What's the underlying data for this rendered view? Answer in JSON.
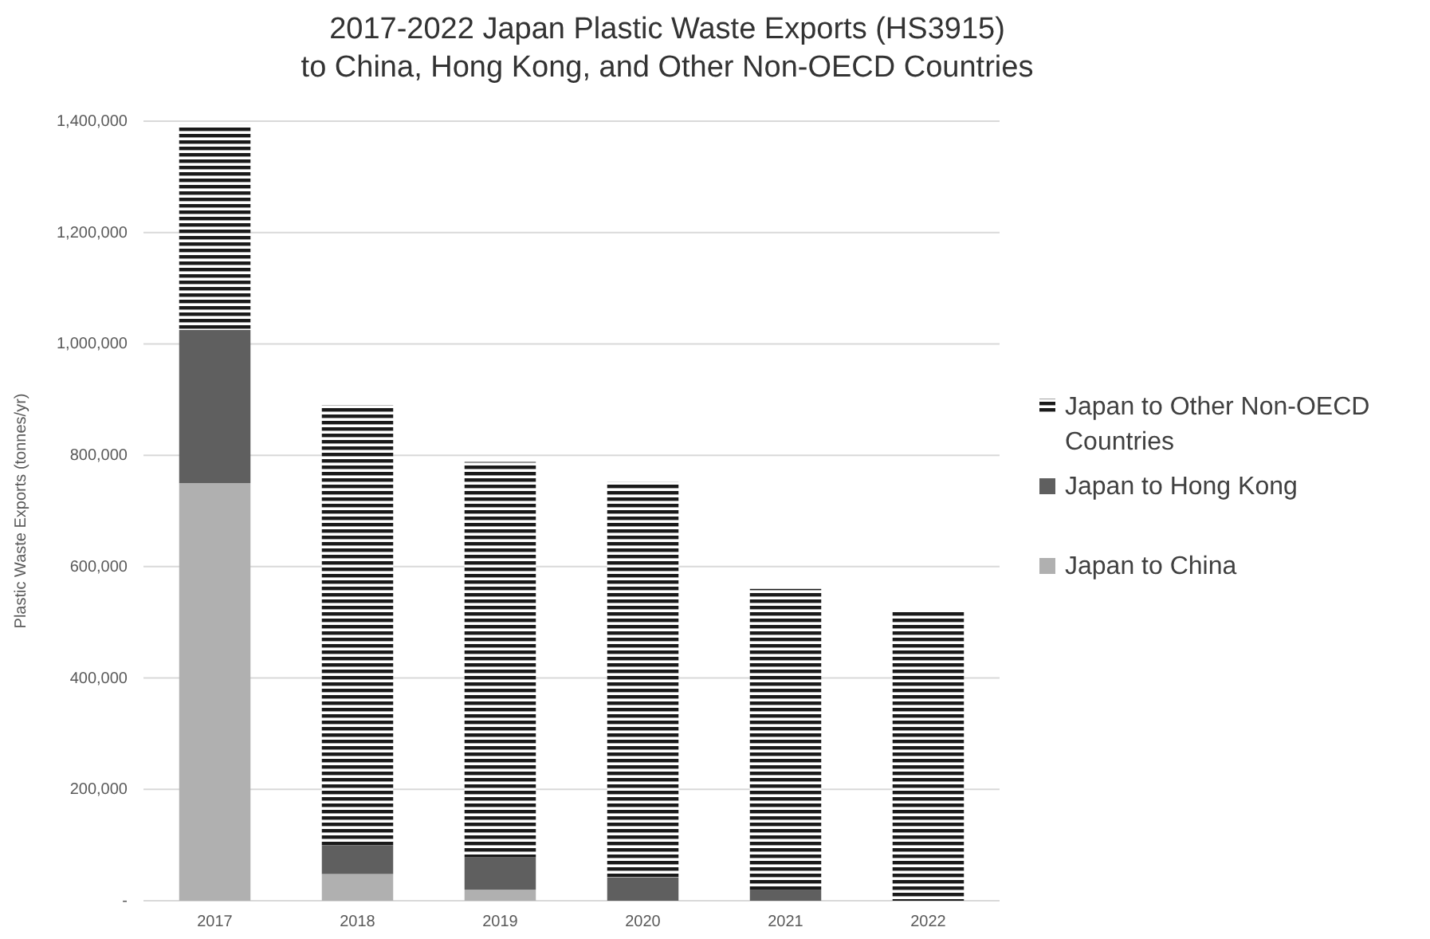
{
  "chart_data": {
    "type": "bar",
    "title": "2017-2022 Japan Plastic Waste Exports (HS3915)\nto China, Hong Kong, and Other Non-OECD Countries",
    "ylabel": "Plastic Waste Exports (tonnes/yr)",
    "categories": [
      "2017",
      "2018",
      "2019",
      "2020",
      "2021",
      "2022"
    ],
    "stacked": true,
    "series": [
      {
        "name": "Japan to China",
        "color": "#b0b0b0",
        "values": [
          750000,
          48000,
          20000,
          null,
          0,
          0
        ]
      },
      {
        "name": "Japan to Hong Kong",
        "color": "#5f5f5f",
        "values": [
          275000,
          52000,
          58000,
          42000,
          20000,
          0
        ]
      },
      {
        "name": "Japan to Other Non-OECD Countries",
        "color": "#1a1a1a",
        "values": [
          368000,
          790000,
          710000,
          710000,
          540000,
          522000
        ]
      }
    ],
    "ylim": [
      0,
      1400000
    ],
    "yticks": [
      {
        "value": 0,
        "label": "-"
      },
      {
        "value": 200000,
        "label": "200,000"
      },
      {
        "value": 400000,
        "label": "400,000"
      },
      {
        "value": 600000,
        "label": "600,000"
      },
      {
        "value": 800000,
        "label": "800,000"
      },
      {
        "value": 1000000,
        "label": "1,000,000"
      },
      {
        "value": 1200000,
        "label": "1,200,000"
      },
      {
        "value": 1400000,
        "label": "1,400,000"
      }
    ],
    "grid": "y",
    "legend": "right"
  }
}
